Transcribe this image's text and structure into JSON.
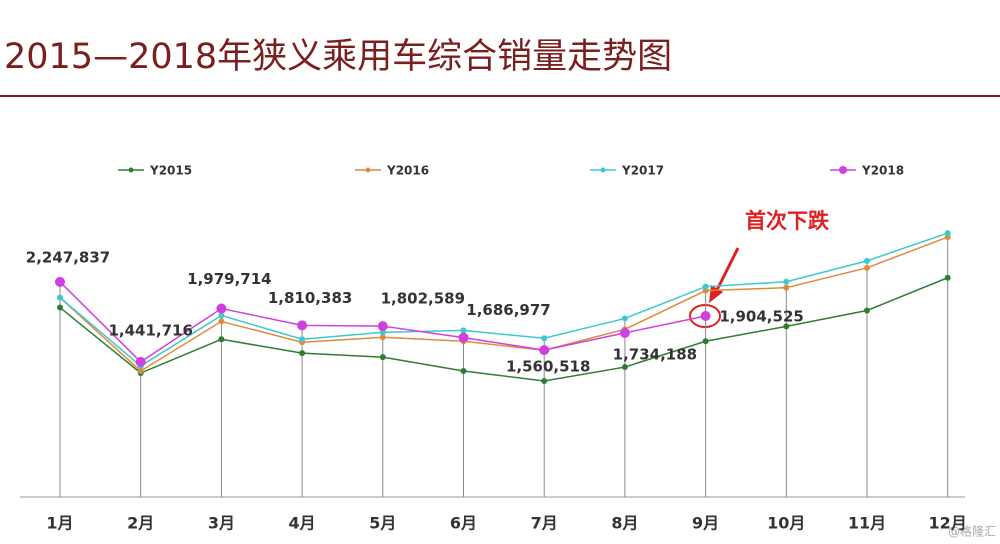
{
  "chart_data": {
    "type": "line",
    "title": "2015—2018年狭义乘用车综合销量走势图",
    "categories": [
      "1月",
      "2月",
      "3月",
      "4月",
      "5月",
      "6月",
      "7月",
      "8月",
      "9月",
      "10月",
      "11月",
      "12月"
    ],
    "series": [
      {
        "name": "Y2015",
        "color": "#2e7d32",
        "values": [
          1990000,
          1330000,
          1670000,
          1530000,
          1490000,
          1350000,
          1250000,
          1390000,
          1650000,
          1800000,
          1960000,
          2290000
        ]
      },
      {
        "name": "Y2016",
        "color": "#e08a3c",
        "values": [
          2090000,
          1350000,
          1850000,
          1640000,
          1690000,
          1650000,
          1560000,
          1770000,
          2160000,
          2190000,
          2390000,
          2700000
        ]
      },
      {
        "name": "Y2017",
        "color": "#3cc8d0",
        "values": [
          2090000,
          1400000,
          1910000,
          1670000,
          1740000,
          1760000,
          1680000,
          1880000,
          2200000,
          2250000,
          2460000,
          2740000
        ]
      },
      {
        "name": "Y2018",
        "color": "#d040e0",
        "values": [
          2247837,
          1441716,
          1979714,
          1810383,
          1802589,
          1686977,
          1560518,
          1734188,
          1904525,
          null,
          null,
          null
        ],
        "value_labels": [
          "2,247,837",
          "1,441,716",
          "1,979,714",
          "1,810,383",
          "1,802,589",
          "1,686,977",
          "1,560,518",
          "1,734,188",
          "1,904,525",
          null,
          null,
          null
        ]
      }
    ],
    "ylim": [
      0,
      3000000
    ],
    "annotation": "首次下跌",
    "watermark": "@格隆汇"
  }
}
